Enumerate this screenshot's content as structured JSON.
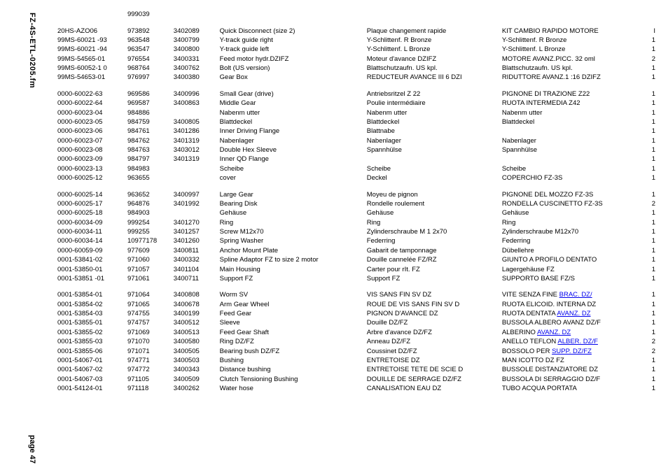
{
  "side_label_top": "FZ-4S-ETL-0205.fm",
  "side_label_bottom": "page 47",
  "columns": [
    "part",
    "num1",
    "num2",
    "desc_en",
    "desc_fr",
    "desc_it",
    "qty"
  ],
  "rows": [
    {
      "c": [
        "",
        "999039",
        "",
        "",
        "",
        "",
        ""
      ]
    },
    {
      "spacer": true
    },
    {
      "c": [
        "20HS-AZO06",
        "973892",
        "3402089",
        "Quick Disconnect (size 2)",
        "Plaque changement rapide",
        "KIT CAMBIO RAPIDO MOTORE",
        "I"
      ]
    },
    {
      "c": [
        "99MS-60021 -93",
        "963548",
        "3400799",
        "Y-track guide right",
        "Y-Schlittenf. R Bronze",
        "Y-Schlittenf. R Bronze",
        "1"
      ]
    },
    {
      "c": [
        "99MS-60021 -94",
        "963547",
        "3400800",
        "Y-track guide left",
        "Y-Schlittenf. L Bronze",
        "Y-Schlittenf. L Bronze",
        "1"
      ]
    },
    {
      "c": [
        "99MS-54565-01",
        "976554",
        "3400331",
        "Feed motor hydr.DZIFZ",
        "Moteur d'avance DZIFZ",
        "MOTORE AVANZ.PICC. 32 oml",
        "2"
      ]
    },
    {
      "c": [
        "99MS-60052-1 0",
        "968764",
        "3400762",
        "Bolt (US version)",
        "Blattschutzaufn. US kpl.",
        "Blattschutzaufn. US kpl.",
        "1"
      ]
    },
    {
      "c": [
        "99MS-54653-01",
        "976997",
        "3400380",
        "Gear Box",
        "REDUCTEUR AVANCE III 6 DZI",
        "RIDUTTORE AVANZ.1 :16 DZIFZ",
        "1"
      ]
    },
    {
      "spacer": true
    },
    {
      "c": [
        "0000-60022-63",
        "969586",
        "3400996",
        "Small Gear (drive)",
        "Antriebsritzel Z 22",
        "PIGNONE DI TRAZIONE Z22",
        "1"
      ]
    },
    {
      "c": [
        "0000-60022-64",
        "969587",
        "3400863",
        "Middle Gear",
        "Poulie intermédiaire",
        "RUOTA INTERMEDIA Z42",
        "1"
      ]
    },
    {
      "c": [
        "0000-60023-04",
        "984886",
        "",
        "Nabenm utter",
        "Nabenm utter",
        "Nabenm utter",
        "1"
      ]
    },
    {
      "c": [
        "0000-60023-05",
        "984759",
        "3400805",
        "Blattdeckel",
        "Blattdeckel",
        " Blattdeckel",
        "  1"
      ]
    },
    {
      "c": [
        "0000-60023-06",
        "984761",
        "3401286",
        " Inner Driving Flange",
        "Blattnabe",
        "",
        "       1"
      ]
    },
    {
      "c": [
        "0000-60023-07",
        "984762",
        "3401319",
        "   Nabenlager",
        "  Nabenlager",
        "   Nabenlager",
        "1"
      ]
    },
    {
      "c": [
        "0000-60023-08",
        "984763",
        "3403012",
        "Double Hex Sleeve",
        "Spannhülse",
        "Spannhülse",
        "1"
      ]
    },
    {
      "c": [
        "0000-60023-09",
        "984797",
        "3401319",
        "Inner QD Flange",
        "",
        "",
        "1"
      ]
    },
    {
      "c": [
        "0000-60023-13",
        "984983",
        "",
        "Scheibe",
        "Scheibe",
        "Scheibe",
        "1"
      ]
    },
    {
      "c": [
        "0000-60025-12",
        "963655",
        "",
        "cover",
        "Deckel",
        "COPERCHIO FZ-3S",
        "1"
      ]
    },
    {
      "spacer": true
    },
    {
      "c": [
        "0000-60025-14",
        "963652",
        "3400997",
        "Large Gear",
        "Moyeu de pignon",
        "PIGNONE DEL MOZZO FZ-3S",
        "1"
      ]
    },
    {
      "c": [
        "0000-60025-17",
        "964876",
        "3401992",
        " Bearing Disk",
        "Rondelle roulement",
        "RONDELLA CUSCINETTO FZ-3S",
        "2"
      ]
    },
    {
      "c": [
        "0000-60025-18",
        "984903",
        "",
        "Gehäuse",
        "Gehäuse",
        "Gehäuse",
        "1"
      ]
    },
    {
      "c": [
        "0000-60034-09",
        "999254",
        "3401270",
        "Ring",
        "Ring",
        "Ring",
        "1"
      ]
    },
    {
      "c": [
        "0000-60034-11",
        "999255",
        "3401257",
        "Screw M12x70",
        "Zylinderschraube M 1 2x70",
        "Zylinderschraube M12x70",
        "1"
      ]
    },
    {
      "c": [
        "0000-60034-14",
        "10977178",
        "3401260",
        "Spring Washer",
        "Federring",
        "Federring",
        "1"
      ]
    },
    {
      "c": [
        "0000-60059-09",
        "977609",
        "3400811",
        "Anchor Mount Plate",
        "Gabarit de tamponnage",
        "Dübellehre",
        "1"
      ]
    },
    {
      "c": [
        "0001-53841-02",
        "971060",
        "3400332",
        "Spline Adaptor FZ to size 2   motor",
        "Douille cannelée FZ/RZ",
        "GIUNTO A PROFILO DENTATO",
        "1"
      ]
    },
    {
      "c": [
        "0001-53850-01",
        "971057",
        "3401104",
        "Main Housing",
        "Carter pour rIt. FZ",
        "Lagergehäuse FZ",
        "1"
      ]
    },
    {
      "c": [
        "0001-53851 -01",
        "971061",
        "3400711",
        "Support FZ",
        "Support FZ",
        "SUPPORTO BASE FZ/S",
        "1"
      ]
    },
    {
      "spacer": true
    },
    {
      "c": [
        "0001-53854-01",
        "971064",
        "3400808",
        "Worm SV",
        "VIS SANS FIN SV DZ",
        {
          "pre": "VITE SENZA FINE ",
          "link": "BRAC. DZ/"
        },
        "1"
      ]
    },
    {
      "c": [
        "0001-53854-02",
        "971065",
        "3400678",
        "Arm Gear Wheel",
        "ROUE DE VIS SANS FIN SV D",
        "RUOTA ELICOID. INTERNA DZ",
        "1"
      ]
    },
    {
      "c": [
        "0001-53854-03",
        "974755",
        "3400199",
        "Feed Gear",
        "PIGNON D'AVANCE DZ",
        {
          "pre": "RUOTA DENTATA ",
          "link": "AVANZ. DZ"
        },
        "1"
      ]
    },
    {
      "c": [
        "0001-53855-01",
        "974757",
        "3400512",
        "Sleeve",
        "Douille DZ/FZ",
        "BUSSOLA ALBERO AVANZ DZ/F",
        "1"
      ]
    },
    {
      "c": [
        "0001-53855-02",
        "971069",
        "3400513",
        "Feed Gear Shaft",
        "Arbre d'avance DZ/FZ",
        {
          "pre": "ALBERINO ",
          "link": "AVANZ. DZ"
        },
        "1"
      ]
    },
    {
      "c": [
        "0001-53855-03",
        "971070",
        "3400580",
        "Ring DZ/FZ",
        "Anneau DZ/FZ",
        {
          "pre": "ANELLO TEFLON ",
          "link": "ALBER. DZ/F"
        },
        "2"
      ]
    },
    {
      "c": [
        "0001-53855-06",
        "971071",
        "3400505",
        "Bearing bush DZ/FZ",
        "Coussinet DZ/FZ",
        {
          "pre": "BOSSOLO PER ",
          "link": "SUPP. DZ/FZ"
        },
        "2"
      ]
    },
    {
      "c": [
        "0001-54067-01",
        "974771",
        "3400503",
        "Bushing",
        "ENTRETOISE DZ",
        "MAN ICOTTO DZ FZ",
        "1"
      ]
    },
    {
      "c": [
        "0001-54067-02",
        "974772",
        "3400343",
        "Distance bushing",
        "ENTRETOISE TETE DE SCIE D",
        "BUSSOLE DISTANZIATORE DZ",
        "1"
      ]
    },
    {
      "c": [
        "0001-54067-03",
        "971105",
        "3400509",
        "Clutch Tensioning Bushing",
        "DOUILLE DE SERRAGE DZ/FZ",
        "BUSSOLA DI SERRAGGIO DZ/F",
        "1"
      ]
    },
    {
      "c": [
        "0001-54124-01",
        "971118",
        "3400262",
        "Water hose",
        "CANALISATION EAU DZ",
        "TUBO ACQUA PORTATA",
        "1"
      ]
    }
  ]
}
